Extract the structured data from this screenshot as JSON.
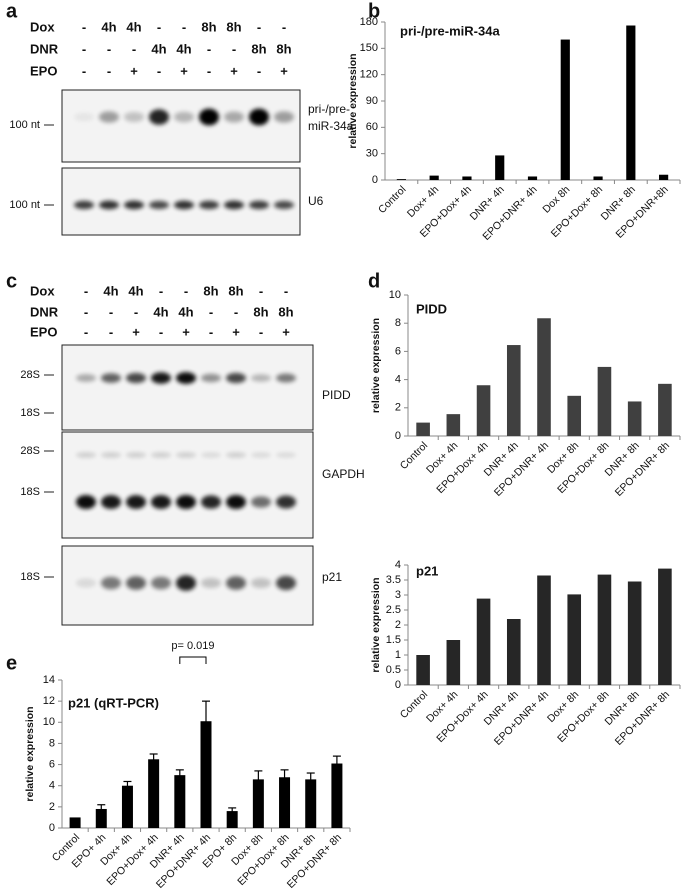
{
  "panel_labels": [
    "a",
    "b",
    "c",
    "d",
    "e"
  ],
  "blot_panels": [
    {
      "rows": [
        {
          "name": "Dox",
          "lanes": [
            "-",
            "4h",
            "4h",
            "-",
            "-",
            "8h",
            "8h",
            "-",
            "-"
          ]
        },
        {
          "name": "DNR",
          "lanes": [
            "-",
            "-",
            "-",
            "4h",
            "4h",
            "-",
            "-",
            "8h",
            "8h"
          ]
        },
        {
          "name": "EPO",
          "lanes": [
            "-",
            "-",
            "+",
            "-",
            "+",
            "-",
            "+",
            "-",
            "+"
          ]
        }
      ],
      "membranes": [
        {
          "label_lines": [
            "pri-/pre-",
            "miR-34a"
          ],
          "markers": [
            "100 nt"
          ]
        },
        {
          "label_lines": [
            "U6"
          ],
          "markers": [
            "100 nt"
          ]
        }
      ]
    },
    {
      "rows": [
        {
          "name": "Dox",
          "lanes": [
            "-",
            "4h",
            "4h",
            "-",
            "-",
            "8h",
            "8h",
            "-",
            "-"
          ]
        },
        {
          "name": "DNR",
          "lanes": [
            "-",
            "-",
            "-",
            "4h",
            "4h",
            "-",
            "-",
            "8h",
            "8h"
          ]
        },
        {
          "name": "EPO",
          "lanes": [
            "-",
            "-",
            "+",
            "-",
            "+",
            "-",
            "+",
            "-",
            "+"
          ]
        }
      ],
      "membranes": [
        {
          "label_lines": [
            "PIDD"
          ],
          "markers": [
            "28S",
            "18S"
          ]
        },
        {
          "label_lines": [
            "GAPDH"
          ],
          "markers": [
            "28S",
            "18S"
          ]
        },
        {
          "label_lines": [
            "p21"
          ],
          "markers": [
            "18S"
          ]
        }
      ]
    }
  ],
  "chart_data": [
    {
      "type": "bar",
      "title": "pri-/pre-miR-34a",
      "y_label": "relative expression",
      "categories": [
        "Control",
        "Dox+ 4h",
        "EPO+Dox+ 4h",
        "DNR+ 4h",
        "EPO+DNR+ 4h",
        "Dox 8h",
        "EPO+Dox+ 8h",
        "DNR+ 8h",
        "EPO+DNR+8h"
      ],
      "values": [
        1,
        5,
        4,
        28,
        4,
        160,
        4,
        176,
        6
      ],
      "color": "#000000",
      "ylim": [
        0,
        180
      ],
      "yticks": [
        0,
        30,
        60,
        90,
        120,
        150,
        180
      ]
    },
    {
      "type": "bar",
      "title": "PIDD",
      "y_label": "relative expression",
      "categories": [
        "Control",
        "Dox+ 4h",
        "EPO+Dox+ 4h",
        "DNR+ 4h",
        "EPO+DNR+ 4h",
        "Dox+ 8h",
        "EPO+Dox+ 8h",
        "DNR+ 8h",
        "EPO+DNR+ 8h"
      ],
      "values": [
        0.95,
        1.55,
        3.6,
        6.45,
        8.35,
        2.85,
        4.9,
        2.45,
        3.7
      ],
      "color": "#404040",
      "ylim": [
        0,
        10
      ],
      "yticks": [
        0,
        2,
        4,
        6,
        8,
        10
      ]
    },
    {
      "type": "bar",
      "title": "p21",
      "y_label": "relative expression",
      "categories": [
        "Control",
        "Dox+ 4h",
        "EPO+Dox+ 4h",
        "DNR+ 4h",
        "EPO+DNR+ 4h",
        "Dox+ 8h",
        "EPO+Dox+ 8h",
        "DNR+ 8h",
        "EPO+DNR+ 8h"
      ],
      "values": [
        1,
        1.5,
        2.88,
        2.2,
        3.65,
        3.02,
        3.68,
        3.45,
        3.88
      ],
      "color": "#262626",
      "ylim": [
        0,
        4
      ],
      "yticks": [
        0,
        0.5,
        1,
        1.5,
        2,
        2.5,
        3,
        3.5,
        4
      ]
    },
    {
      "type": "bar",
      "title": "p21 (qRT-PCR)",
      "y_label": "relative expression",
      "categories": [
        "Control",
        "EPO+ 4h",
        "Dox+ 4h",
        "EPO+Dox+ 4h",
        "DNR+ 4h",
        "EPO+DNR+ 4h",
        "EPO+ 8h",
        "Dox+ 8h",
        "EPO+Dox+ 8h",
        "DNR+ 8h",
        "EPO+DNR+ 8h"
      ],
      "values": [
        1,
        1.8,
        4,
        6.5,
        5,
        10.1,
        1.6,
        4.6,
        4.8,
        4.6,
        6.1
      ],
      "errors": [
        null,
        0.4,
        0.4,
        0.5,
        0.5,
        1.9,
        0.3,
        0.8,
        0.7,
        0.6,
        0.7
      ],
      "color": "#000000",
      "annotation": "p= 0.019",
      "ylim": [
        0,
        14
      ],
      "yticks": [
        0,
        2,
        4,
        6,
        8,
        10,
        12,
        14
      ]
    }
  ]
}
